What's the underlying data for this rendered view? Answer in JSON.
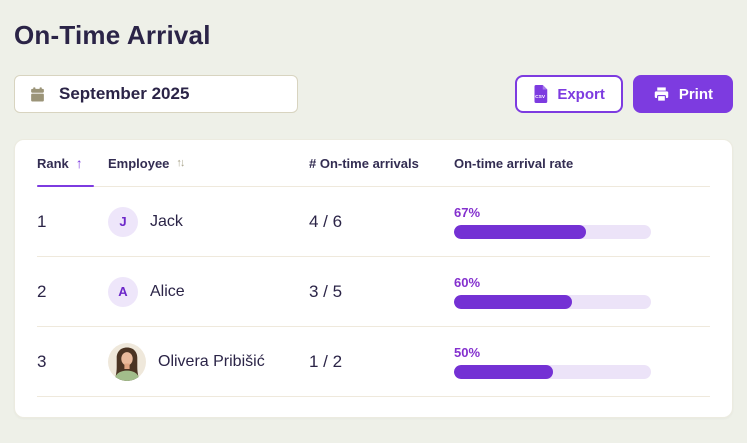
{
  "page": {
    "title": "On-Time Arrival"
  },
  "toolbar": {
    "date_picker": {
      "value": "September 2025"
    },
    "export_label": "Export",
    "export_icon_label": "CSV",
    "print_label": "Print"
  },
  "icons": {
    "rank_sort_asc": "↑",
    "employee_sort_both": "↑↓"
  },
  "colors": {
    "accent": "#7d3be0",
    "progress_fill": "#7431d4",
    "progress_track": "#ece3f8",
    "percent_text": "#8430ce",
    "page_background": "#eef0e8",
    "ink": "#2b2447"
  },
  "table": {
    "columns": [
      {
        "label": "Rank",
        "sort": "asc"
      },
      {
        "label": "Employee",
        "sort": "none"
      },
      {
        "label": "# On-time arrivals",
        "sort": null
      },
      {
        "label": "On-time arrival rate",
        "sort": null
      }
    ],
    "rows": [
      {
        "rank": "1",
        "initial": "J",
        "name": "Jack",
        "count": "4 / 6",
        "rate_label": "67%",
        "rate_pct": 67,
        "avatar_type": "initial"
      },
      {
        "rank": "2",
        "initial": "A",
        "name": "Alice",
        "count": "3 / 5",
        "rate_label": "60%",
        "rate_pct": 60,
        "avatar_type": "initial"
      },
      {
        "rank": "3",
        "initial": "",
        "name": "Olivera Pribišić",
        "count": "1 / 2",
        "rate_label": "50%",
        "rate_pct": 50,
        "avatar_type": "photo"
      }
    ]
  }
}
